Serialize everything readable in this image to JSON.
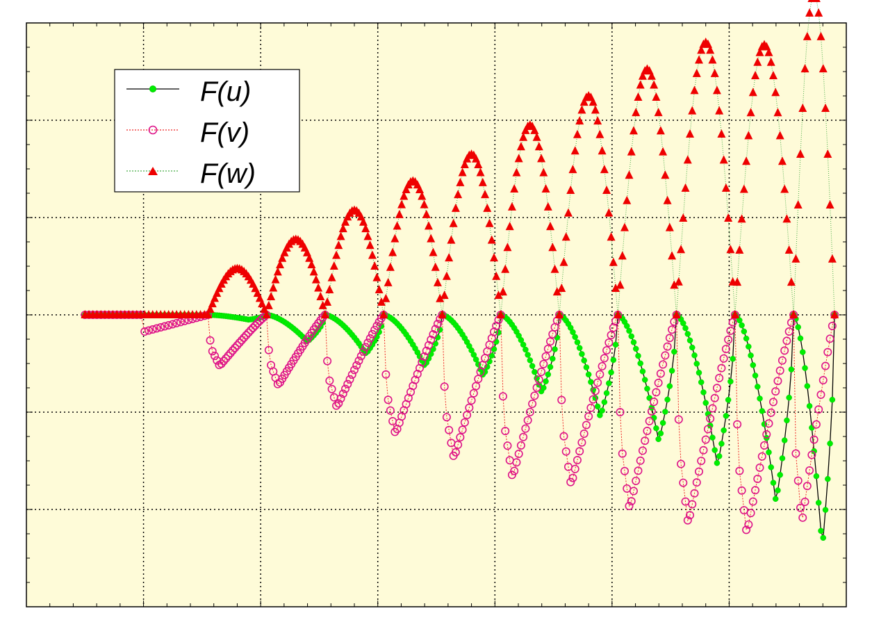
{
  "chart_data": {
    "type": "line",
    "title": "",
    "xlabel": "",
    "ylabel": "",
    "xlim": [
      0,
      7
    ],
    "ylim": [
      -6,
      6
    ],
    "grid": true,
    "grid_style": "dotted",
    "background": "#fefbd8",
    "legend_position": "top-left",
    "series": [
      {
        "name": "F(u)",
        "color": "#00ee00",
        "line_color": "#000000",
        "line_style": "solid",
        "marker": "filled-circle"
      },
      {
        "name": "F(v)",
        "color": "#dd1188",
        "line_color": "#ee2222",
        "line_style": "dotted",
        "marker": "open-circle"
      },
      {
        "name": "F(w)",
        "color": "#ee0000",
        "line_color": "#44aa44",
        "line_style": "dotted",
        "marker": "filled-triangle"
      }
    ],
    "flat_segment": {
      "x_start": 0.5,
      "x_end": 1.55,
      "v_step_at": 1.0,
      "v_step_value": -0.35
    },
    "cycles": [
      {
        "x_start": 1.55,
        "x_end": 2.05,
        "u_min": -0.1,
        "v_min": -1.05,
        "w_max": 0.95
      },
      {
        "x_start": 2.05,
        "x_end": 2.55,
        "u_min": -0.55,
        "v_min": -1.45,
        "w_max": 1.55
      },
      {
        "x_start": 2.55,
        "x_end": 3.05,
        "u_min": -0.8,
        "v_min": -1.9,
        "w_max": 2.15
      },
      {
        "x_start": 3.05,
        "x_end": 3.55,
        "u_min": -1.05,
        "v_min": -2.45,
        "w_max": 2.75
      },
      {
        "x_start": 3.55,
        "x_end": 4.05,
        "u_min": -1.25,
        "v_min": -2.95,
        "w_max": 3.3
      },
      {
        "x_start": 4.05,
        "x_end": 4.55,
        "u_min": -1.6,
        "v_min": -3.35,
        "w_max": 3.9
      },
      {
        "x_start": 4.55,
        "x_end": 5.05,
        "u_min": -2.1,
        "v_min": -3.5,
        "w_max": 4.5
      },
      {
        "x_start": 5.05,
        "x_end": 5.55,
        "u_min": -2.6,
        "v_min": -4.0,
        "w_max": 5.05
      },
      {
        "x_start": 5.55,
        "x_end": 6.05,
        "u_min": -3.1,
        "v_min": -4.3,
        "w_max": 5.6
      },
      {
        "x_start": 6.05,
        "x_end": 6.55,
        "u_min": -3.85,
        "v_min": -4.5,
        "w_max": 5.55
      },
      {
        "x_start": 6.55,
        "x_end": 6.9,
        "u_min": -4.8,
        "v_min": -4.3,
        "w_max": 6.6
      }
    ]
  }
}
